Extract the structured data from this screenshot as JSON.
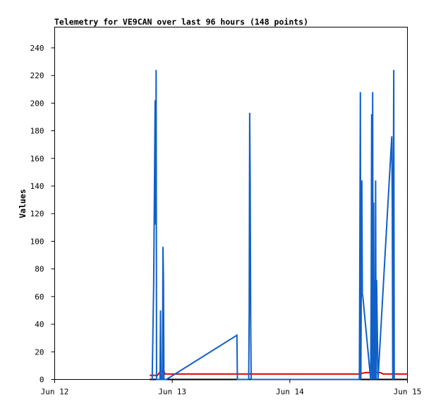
{
  "chart_data": {
    "type": "line",
    "title": "Telemetry for VE9CAN over last 96 hours (148 points)",
    "xlabel": "",
    "ylabel": "Values",
    "x_ticks": [
      "Jun 12",
      "Jun 13",
      "Jun 14",
      "Jun 15"
    ],
    "xlim": [
      0,
      72
    ],
    "ylim": [
      0,
      255
    ],
    "y_ticks": [
      0,
      20,
      40,
      60,
      80,
      100,
      120,
      140,
      160,
      180,
      200,
      220,
      240
    ],
    "x_unit": "hours since Jun 12 00:00",
    "grid": false,
    "legend": "none",
    "series": [
      {
        "color": "#000000",
        "points": [
          [
            19.4,
            0
          ],
          [
            72,
            0
          ]
        ]
      },
      {
        "color": "#dd0000",
        "points": [
          [
            19.4,
            3
          ],
          [
            21.0,
            3
          ],
          [
            21.6,
            6
          ],
          [
            22.3,
            6
          ],
          [
            22.5,
            4
          ],
          [
            24,
            4
          ],
          [
            30,
            4
          ],
          [
            36,
            4
          ],
          [
            42,
            4
          ],
          [
            48,
            4
          ],
          [
            62,
            4
          ],
          [
            63.5,
            5
          ],
          [
            66.5,
            5
          ],
          [
            67,
            4
          ],
          [
            72,
            4
          ]
        ]
      },
      {
        "color": "#1060c8",
        "points": [
          [
            19.9,
            0
          ],
          [
            20.0,
            22
          ],
          [
            20.2,
            68
          ],
          [
            20.3,
            112
          ],
          [
            20.4,
            156
          ],
          [
            20.5,
            202
          ],
          [
            20.6,
            112
          ],
          [
            20.7,
            224
          ],
          [
            20.8,
            0
          ],
          [
            21.5,
            0
          ],
          [
            21.6,
            50
          ],
          [
            21.7,
            0
          ],
          [
            22.0,
            0
          ],
          [
            22.1,
            96
          ],
          [
            22.2,
            72
          ],
          [
            22.3,
            0
          ],
          [
            22.8,
            0
          ],
          [
            37.2,
            32
          ],
          [
            37.3,
            0
          ],
          [
            39.6,
            0
          ],
          [
            39.7,
            48
          ],
          [
            39.8,
            193
          ],
          [
            39.9,
            144
          ],
          [
            40.0,
            48
          ],
          [
            40.1,
            0
          ],
          [
            61.5,
            0
          ],
          [
            62.2,
            0
          ],
          [
            62.3,
            104
          ],
          [
            62.4,
            208
          ],
          [
            62.5,
            0
          ],
          [
            62.6,
            80
          ],
          [
            62.7,
            144
          ],
          [
            62.8,
            62
          ],
          [
            62.9,
            60
          ],
          [
            64.5,
            0
          ],
          [
            64.6,
            64
          ],
          [
            64.7,
            192
          ],
          [
            64.8,
            0
          ],
          [
            64.9,
            208
          ],
          [
            65.0,
            0
          ],
          [
            65.1,
            128
          ],
          [
            65.2,
            0
          ],
          [
            65.3,
            72
          ],
          [
            65.4,
            0
          ],
          [
            65.5,
            144
          ],
          [
            65.6,
            0
          ],
          [
            65.7,
            72
          ],
          [
            66.0,
            0
          ],
          [
            68.8,
            176
          ],
          [
            68.9,
            128
          ],
          [
            69.0,
            0
          ],
          [
            69.1,
            112
          ],
          [
            69.2,
            224
          ],
          [
            69.3,
            0
          ]
        ]
      }
    ]
  }
}
